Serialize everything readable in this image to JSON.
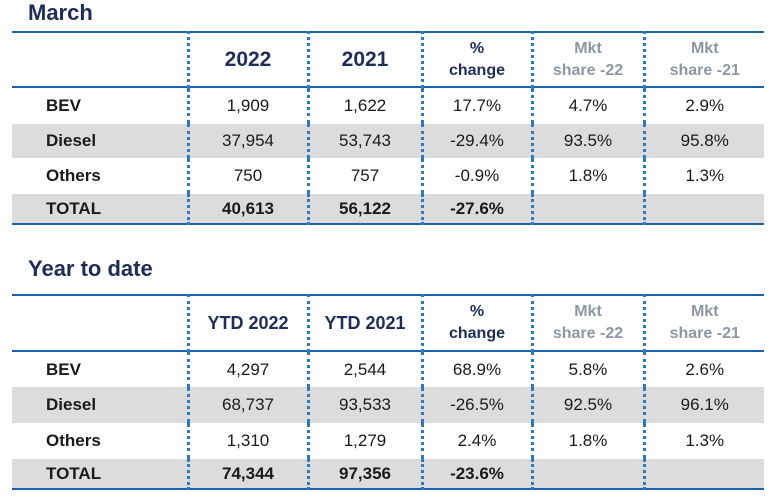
{
  "march": {
    "title": "March",
    "headers": {
      "col1": "2022",
      "col2": "2021",
      "pct_line1": "%",
      "pct_line2": "change",
      "mkt22_line1": "Mkt",
      "mkt22_line2": "share -22",
      "mkt21_line1": "Mkt",
      "mkt21_line2": "share -21"
    },
    "rows": [
      {
        "label": "BEV",
        "c1": "1,909",
        "c2": "1,622",
        "pct": "17.7%",
        "m22": "4.7%",
        "m21": "2.9%"
      },
      {
        "label": "Diesel",
        "c1": "37,954",
        "c2": "53,743",
        "pct": "-29.4%",
        "m22": "93.5%",
        "m21": "95.8%"
      },
      {
        "label": "Others",
        "c1": "750",
        "c2": "757",
        "pct": "-0.9%",
        "m22": "1.8%",
        "m21": "1.3%"
      },
      {
        "label": "TOTAL",
        "c1": "40,613",
        "c2": "56,122",
        "pct": "-27.6%",
        "m22": "",
        "m21": ""
      }
    ]
  },
  "ytd": {
    "title": "Year to date",
    "headers": {
      "col1": "YTD 2022",
      "col2": "YTD 2021",
      "pct_line1": "%",
      "pct_line2": "change",
      "mkt22_line1": "Mkt",
      "mkt22_line2": "share -22",
      "mkt21_line1": "Mkt",
      "mkt21_line2": "share -21"
    },
    "rows": [
      {
        "label": "BEV",
        "c1": "4,297",
        "c2": "2,544",
        "pct": "68.9%",
        "m22": "5.8%",
        "m21": "2.6%"
      },
      {
        "label": "Diesel",
        "c1": "68,737",
        "c2": "93,533",
        "pct": "-26.5%",
        "m22": "92.5%",
        "m21": "96.1%"
      },
      {
        "label": "Others",
        "c1": "1,310",
        "c2": "1,279",
        "pct": "2.4%",
        "m22": "1.8%",
        "m21": "1.3%"
      },
      {
        "label": "TOTAL",
        "c1": "74,344",
        "c2": "97,356",
        "pct": "-23.6%",
        "m22": "",
        "m21": ""
      }
    ]
  }
}
